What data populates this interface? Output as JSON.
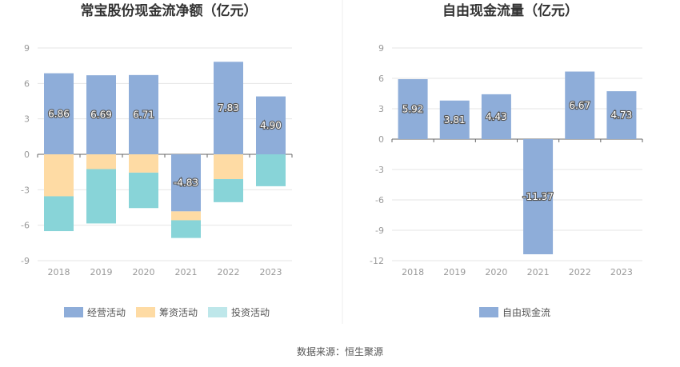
{
  "source": "数据来源：恒生聚源",
  "colors": {
    "operating": "#8eadd9",
    "financing": "#fedba4",
    "investing": "#88d4d8",
    "fcf": "#8eadd9"
  },
  "chart_data": [
    {
      "type": "bar",
      "stacked": true,
      "title": "常宝股份现金流净额（亿元）",
      "categories": [
        "2018",
        "2019",
        "2020",
        "2021",
        "2022",
        "2023"
      ],
      "ylim": [
        -9,
        9
      ],
      "yticks": [
        9,
        6,
        3,
        0,
        -3,
        -6,
        -9
      ],
      "grid": true,
      "legend_position": "bottom",
      "series": [
        {
          "name": "经营活动",
          "color": "#8eadd9",
          "values": [
            6.86,
            6.69,
            6.71,
            -4.83,
            7.83,
            4.9
          ],
          "labels": [
            "6.86",
            "6.69",
            "6.71",
            "-4.83",
            "7.83",
            "4.90"
          ]
        },
        {
          "name": "筹资活动",
          "color": "#fedba4",
          "values": [
            -3.55,
            -1.25,
            -1.55,
            -0.75,
            -2.1,
            0
          ]
        },
        {
          "name": "投资活动",
          "color": "#88d4d8",
          "values": [
            -2.95,
            -4.6,
            -3.0,
            -1.5,
            -1.95,
            -2.7
          ]
        }
      ]
    },
    {
      "type": "bar",
      "title": "自由现金流量（亿元）",
      "categories": [
        "2018",
        "2019",
        "2020",
        "2021",
        "2022",
        "2023"
      ],
      "ylim": [
        -12,
        9
      ],
      "yticks": [
        9,
        6,
        3,
        0,
        -3,
        -6,
        -9,
        -12
      ],
      "grid": true,
      "legend_position": "bottom",
      "series": [
        {
          "name": "自由现金流",
          "color": "#8eadd9",
          "values": [
            5.92,
            3.81,
            4.43,
            -11.37,
            6.67,
            4.73
          ],
          "labels": [
            "5.92",
            "3.81",
            "4.43",
            "-11.37",
            "6.67",
            "4.73"
          ]
        }
      ]
    }
  ]
}
